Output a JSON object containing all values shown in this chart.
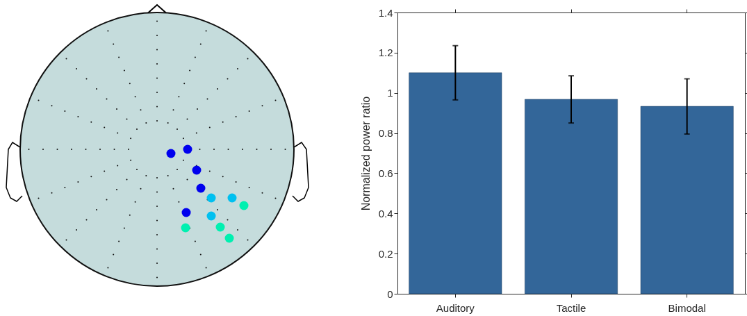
{
  "chart_data": {
    "type": "bar",
    "ylabel": "Normalized power ratio",
    "categories": [
      "Auditory",
      "Tactile",
      "Bimodal"
    ],
    "values": [
      1.1,
      0.968,
      0.933
    ],
    "color": "#336699",
    "errors": [
      [
        0.965,
        1.235
      ],
      [
        0.85,
        1.085
      ],
      [
        0.795,
        1.07
      ]
    ],
    "ylim": [
      0,
      1.4
    ],
    "yticks": [
      0,
      0.2,
      0.4,
      0.6,
      0.8,
      1,
      1.2,
      1.4
    ],
    "grid": false
  }
}
